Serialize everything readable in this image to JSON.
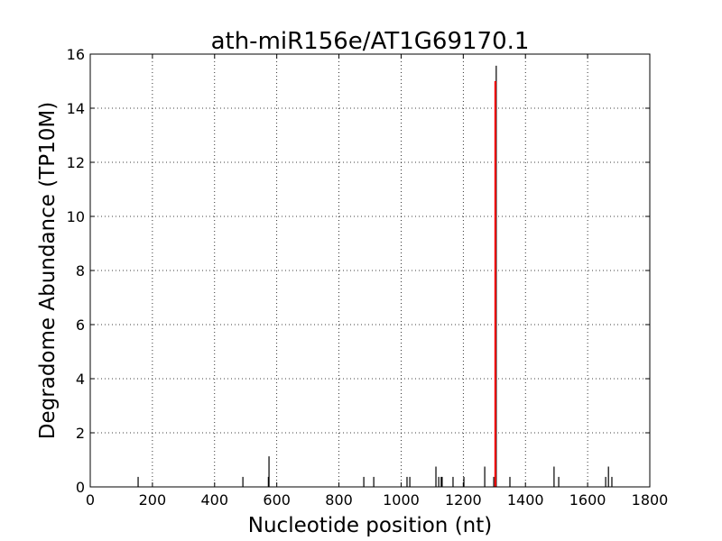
{
  "chart_data": {
    "type": "stem",
    "title": "ath-miR156e/AT1G69170.1",
    "xlabel": "Nucleotide position (nt)",
    "ylabel": "Degradome Abundance (TP10M)",
    "xlim": [
      0,
      1800
    ],
    "xticks": [
      0,
      200,
      400,
      600,
      800,
      1000,
      1200,
      1400,
      1600,
      1800
    ],
    "ylim": [
      0,
      16
    ],
    "yticks": [
      0,
      2,
      4,
      6,
      8,
      10,
      12,
      14,
      16
    ],
    "grid": true,
    "series": [
      {
        "color": "#000000",
        "x": [
          154,
          491,
          573,
          575,
          880,
          912,
          1019,
          1028,
          1112,
          1121,
          1129,
          1132,
          1167,
          1202,
          1269,
          1298,
          1306,
          1350,
          1492,
          1507,
          1658,
          1667,
          1678
        ],
        "values": [
          0.37,
          0.37,
          0.37,
          1.13,
          0.37,
          0.37,
          0.37,
          0.37,
          0.75,
          0.37,
          0.37,
          0.37,
          0.37,
          0.37,
          0.75,
          0.37,
          15.57,
          0.37,
          0.75,
          0.37,
          0.37,
          0.75,
          0.37
        ]
      },
      {
        "color": "#ff0000",
        "x": [
          1303
        ],
        "values": [
          15
        ]
      }
    ]
  }
}
